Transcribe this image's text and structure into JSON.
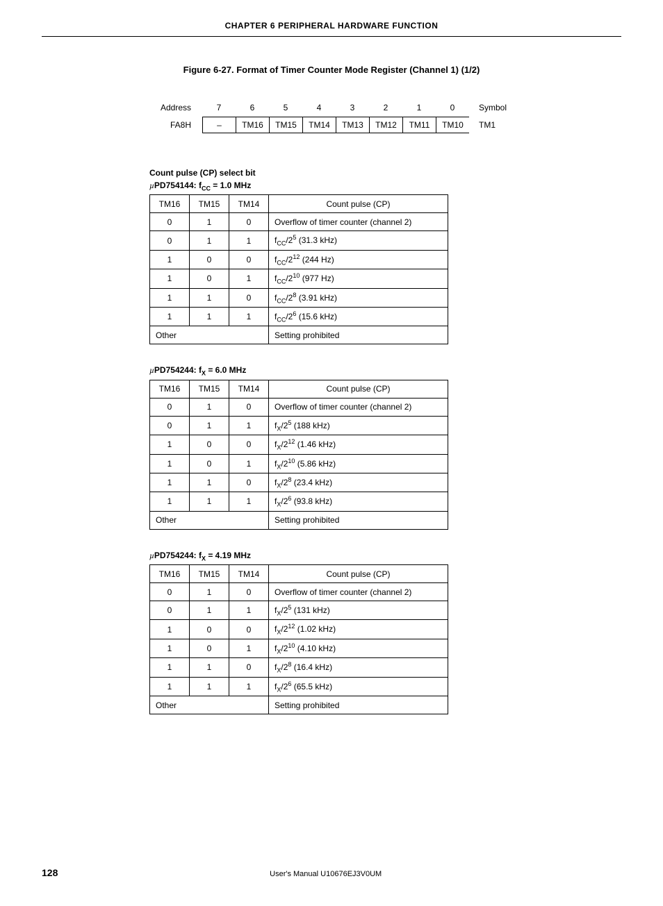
{
  "chapter_header": "CHAPTER 6   PERIPHERAL HARDWARE FUNCTION",
  "figure_title": "Figure 6-27.  Format of Timer Counter Mode Register (Channel 1) (1/2)",
  "register": {
    "address_label": "Address",
    "symbol_label": "Symbol",
    "bit_numbers": [
      "7",
      "6",
      "5",
      "4",
      "3",
      "2",
      "1",
      "0"
    ],
    "addr_value": "FA8H",
    "bits": [
      "–",
      "TM16",
      "TM15",
      "TM14",
      "TM13",
      "TM12",
      "TM11",
      "TM10"
    ],
    "symbol_value": "TM1"
  },
  "section_heading": "Count pulse (CP) select bit",
  "tables": [
    {
      "caption_prefix": "PD754144: f",
      "caption_sub": "CC",
      "caption_suffix": " = 1.0 MHz",
      "freq_symbol": "CC",
      "headers": [
        "TM16",
        "TM15",
        "TM14",
        "Count pulse (CP)"
      ],
      "rows": [
        {
          "b": [
            "0",
            "1",
            "0"
          ],
          "cp_type": "text",
          "cp": "Overflow of timer counter (channel 2)"
        },
        {
          "b": [
            "0",
            "1",
            "1"
          ],
          "cp_type": "div",
          "exp": "5",
          "freq": "(31.3 kHz)"
        },
        {
          "b": [
            "1",
            "0",
            "0"
          ],
          "cp_type": "div",
          "exp": "12",
          "freq": "(244 Hz)"
        },
        {
          "b": [
            "1",
            "0",
            "1"
          ],
          "cp_type": "div",
          "exp": "10",
          "freq": "(977 Hz)"
        },
        {
          "b": [
            "1",
            "1",
            "0"
          ],
          "cp_type": "div",
          "exp": "8",
          "freq": "(3.91 kHz)"
        },
        {
          "b": [
            "1",
            "1",
            "1"
          ],
          "cp_type": "div",
          "exp": "6",
          "freq": "(15.6 kHz)"
        }
      ],
      "other_label": "Other",
      "other_cp": "Setting prohibited"
    },
    {
      "caption_prefix": "PD754244: f",
      "caption_sub": "X",
      "caption_suffix": " = 6.0 MHz",
      "freq_symbol": "X",
      "headers": [
        "TM16",
        "TM15",
        "TM14",
        "Count pulse (CP)"
      ],
      "rows": [
        {
          "b": [
            "0",
            "1",
            "0"
          ],
          "cp_type": "text",
          "cp": "Overflow of timer counter (channel 2)"
        },
        {
          "b": [
            "0",
            "1",
            "1"
          ],
          "cp_type": "div",
          "exp": "5",
          "freq": "(188 kHz)"
        },
        {
          "b": [
            "1",
            "0",
            "0"
          ],
          "cp_type": "div",
          "exp": "12",
          "freq": "(1.46 kHz)"
        },
        {
          "b": [
            "1",
            "0",
            "1"
          ],
          "cp_type": "div",
          "exp": "10",
          "freq": "(5.86 kHz)"
        },
        {
          "b": [
            "1",
            "1",
            "0"
          ],
          "cp_type": "div",
          "exp": "8",
          "freq": "(23.4 kHz)"
        },
        {
          "b": [
            "1",
            "1",
            "1"
          ],
          "cp_type": "div",
          "exp": "6",
          "freq": "(93.8 kHz)"
        }
      ],
      "other_label": "Other",
      "other_cp": "Setting prohibited"
    },
    {
      "caption_prefix": "PD754244: f",
      "caption_sub": "X",
      "caption_suffix": " = 4.19 MHz",
      "freq_symbol": "X",
      "headers": [
        "TM16",
        "TM15",
        "TM14",
        "Count pulse (CP)"
      ],
      "rows": [
        {
          "b": [
            "0",
            "1",
            "0"
          ],
          "cp_type": "text",
          "cp": "Overflow of timer counter (channel 2)"
        },
        {
          "b": [
            "0",
            "1",
            "1"
          ],
          "cp_type": "div",
          "exp": "5",
          "freq": "(131 kHz)"
        },
        {
          "b": [
            "1",
            "0",
            "0"
          ],
          "cp_type": "div",
          "exp": "12",
          "freq": "(1.02 kHz)"
        },
        {
          "b": [
            "1",
            "0",
            "1"
          ],
          "cp_type": "div",
          "exp": "10",
          "freq": "(4.10 kHz)"
        },
        {
          "b": [
            "1",
            "1",
            "0"
          ],
          "cp_type": "div",
          "exp": "8",
          "freq": "(16.4 kHz)"
        },
        {
          "b": [
            "1",
            "1",
            "1"
          ],
          "cp_type": "div",
          "exp": "6",
          "freq": "(65.5 kHz)"
        }
      ],
      "other_label": "Other",
      "other_cp": "Setting prohibited"
    }
  ],
  "footer": {
    "page": "128",
    "manual": "User's Manual  U10676EJ3V0UM"
  }
}
